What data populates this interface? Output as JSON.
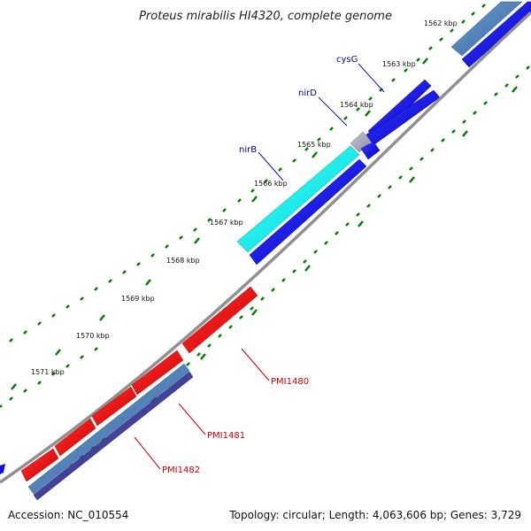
{
  "title": "Proteus mirabilis HI4320, complete genome",
  "footer": {
    "accession": "Accession: NC_010554",
    "summary": "Topology: circular; Length: 4,063,606 bp; Genes: 3,729"
  },
  "kbp_ticks": [
    "1562 kbp",
    "1563 kbp",
    "1564 kbp",
    "1565 kbp",
    "1566 kbp",
    "1567 kbp",
    "1568 kbp",
    "1569 kbp",
    "1570 kbp",
    "1571 kbp"
  ],
  "gene_labels": {
    "cysG": "cysG",
    "nirD": "nirD",
    "nirB": "nirB",
    "pmi1480": "PMI1480",
    "pmi1481": "PMI1481",
    "pmi1482": "PMI1482"
  },
  "colors": {
    "backbone": "#808080",
    "gene_blue": "#0000ee",
    "gene_cyan": "#00f0f0",
    "gene_red": "#ee0000",
    "gene_steel": "#4a7ab0",
    "gene_navy": "#3a3a90",
    "tick_green": "#008000"
  }
}
